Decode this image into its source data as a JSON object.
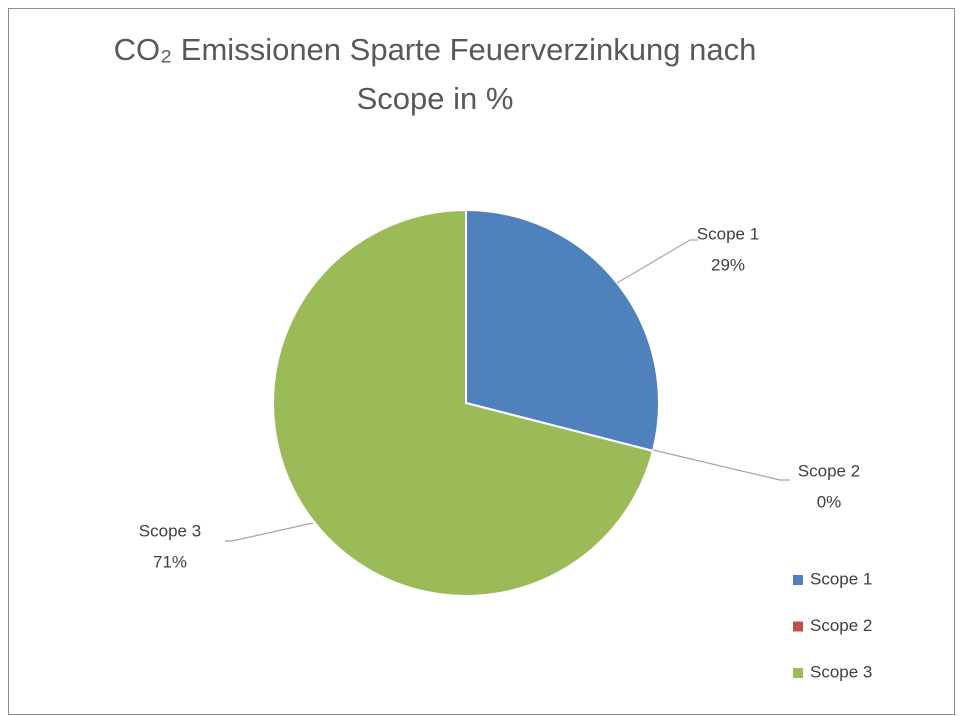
{
  "chart_data": {
    "type": "pie",
    "title": [
      "CO₂ Emissionen Sparte Feuerverzinkung nach",
      "Scope in %"
    ],
    "categories": [
      "Scope 1",
      "Scope 2",
      "Scope 3"
    ],
    "values": [
      29,
      0,
      71
    ],
    "value_labels": [
      "29%",
      "0%",
      "71%"
    ],
    "colors": [
      "#4f81bd",
      "#c0504d",
      "#9bbb59"
    ],
    "legend": "right"
  }
}
